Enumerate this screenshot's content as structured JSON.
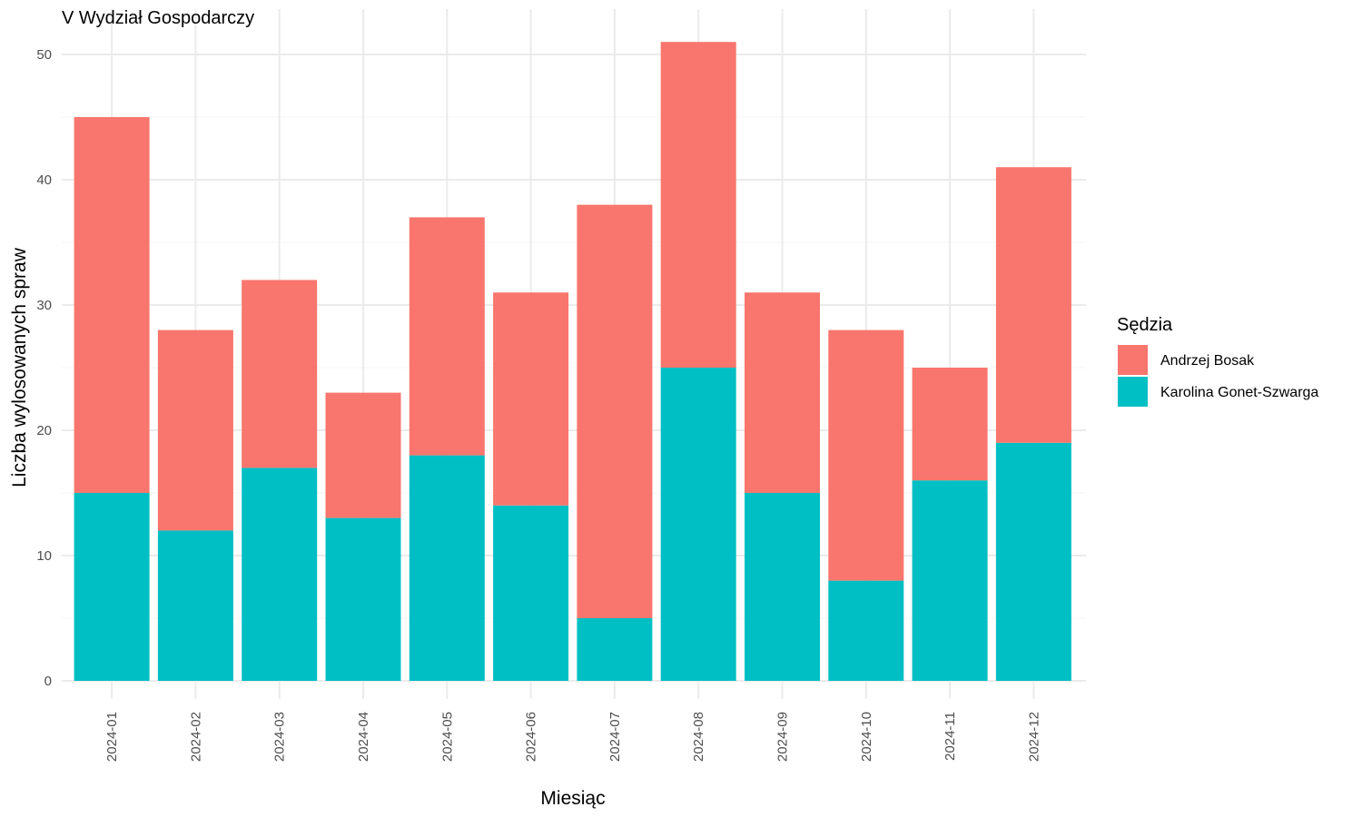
{
  "chart_data": {
    "type": "bar",
    "stacked": true,
    "title": "V Wydział Gospodarczy",
    "xlabel": "Miesiąc",
    "ylabel": "Liczba wylosowanych spraw",
    "ylim": [
      0,
      52
    ],
    "yticks": [
      0,
      10,
      20,
      30,
      40,
      50
    ],
    "grid": true,
    "legend_position": "right",
    "legend_title": "Sędzia",
    "categories": [
      "2024-01",
      "2024-02",
      "2024-03",
      "2024-04",
      "2024-05",
      "2024-06",
      "2024-07",
      "2024-08",
      "2024-09",
      "2024-10",
      "2024-11",
      "2024-12"
    ],
    "series": [
      {
        "name": "Andrzej Bosak",
        "color": "#F8766D",
        "values": [
          30,
          16,
          15,
          10,
          19,
          17,
          33,
          26,
          16,
          20,
          9,
          22
        ]
      },
      {
        "name": "Karolina Gonet-Szwarga",
        "color": "#00BFC4",
        "values": [
          15,
          12,
          17,
          13,
          18,
          14,
          5,
          25,
          15,
          8,
          16,
          19
        ]
      }
    ],
    "stack_order_bottom_to_top": [
      "Karolina Gonet-Szwarga",
      "Andrzej Bosak"
    ]
  }
}
